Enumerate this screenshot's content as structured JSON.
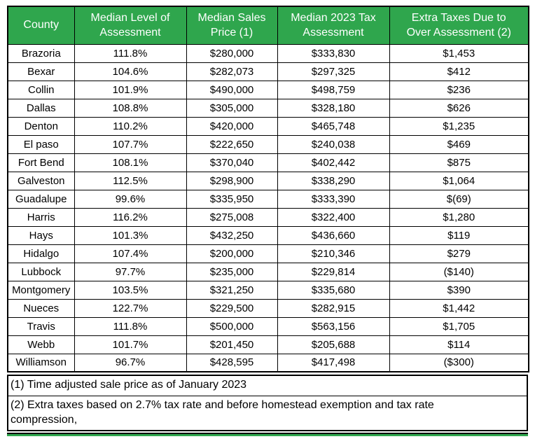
{
  "chart_data": {
    "type": "table",
    "columns": [
      {
        "key": "county",
        "label": "County"
      },
      {
        "key": "median-level-of-assessment",
        "label": "Median Level of\nAssessment"
      },
      {
        "key": "median-sales-price",
        "label": "Median Sales\nPrice (1)"
      },
      {
        "key": "median-2023-tax-assessment",
        "label": "Median 2023 Tax\nAssessment"
      },
      {
        "key": "extra-taxes-over-assessment",
        "label": "Extra Taxes Due to\nOver Assessment (2)"
      }
    ],
    "rows": [
      [
        "Brazoria",
        "111.8%",
        "$280,000",
        "$333,830",
        "$1,453"
      ],
      [
        "Bexar",
        "104.6%",
        "$282,073",
        "$297,325",
        "$412"
      ],
      [
        "Collin",
        "101.9%",
        "$490,000",
        "$498,759",
        "$236"
      ],
      [
        "Dallas",
        "108.8%",
        "$305,000",
        "$328,180",
        "$626"
      ],
      [
        "Denton",
        "110.2%",
        "$420,000",
        "$465,748",
        "$1,235"
      ],
      [
        "El paso",
        "107.7%",
        "$222,650",
        "$240,038",
        "$469"
      ],
      [
        "Fort Bend",
        "108.1%",
        "$370,040",
        "$402,442",
        "$875"
      ],
      [
        "Galveston",
        "112.5%",
        "$298,900",
        "$338,290",
        "$1,064"
      ],
      [
        "Guadalupe",
        "99.6%",
        "$335,950",
        "$333,390",
        "$(69)"
      ],
      [
        "Harris",
        "116.2%",
        "$275,008",
        "$322,400",
        "$1,280"
      ],
      [
        "Hays",
        "101.3%",
        "$432,250",
        "$436,660",
        "$119"
      ],
      [
        "Hidalgo",
        "107.4%",
        "$200,000",
        "$210,346",
        "$279"
      ],
      [
        "Lubbock",
        "97.7%",
        "$235,000",
        "$229,814",
        "($140)"
      ],
      [
        "Montgomery",
        "103.5%",
        "$321,250",
        "$335,680",
        "$390"
      ],
      [
        "Nueces",
        "122.7%",
        "$229,500",
        "$282,915",
        "$1,442"
      ],
      [
        "Travis",
        "111.8%",
        "$500,000",
        "$563,156",
        "$1,705"
      ],
      [
        "Webb",
        "101.7%",
        "$201,450",
        "$205,688",
        "$114"
      ],
      [
        "Williamson",
        "96.7%",
        "$428,595",
        "$417,498",
        "($300)"
      ]
    ],
    "footnotes": {
      "note1": "(1) Time adjusted sale price as of January 2023",
      "note2_line1": "(2) Extra taxes based on 2.7% tax rate and before homestead exemption and tax rate",
      "note2_line2": "compression,"
    }
  },
  "colors": {
    "header_bg": "#2FA64D",
    "header_text": "#FFFFFF",
    "border": "#000000"
  }
}
